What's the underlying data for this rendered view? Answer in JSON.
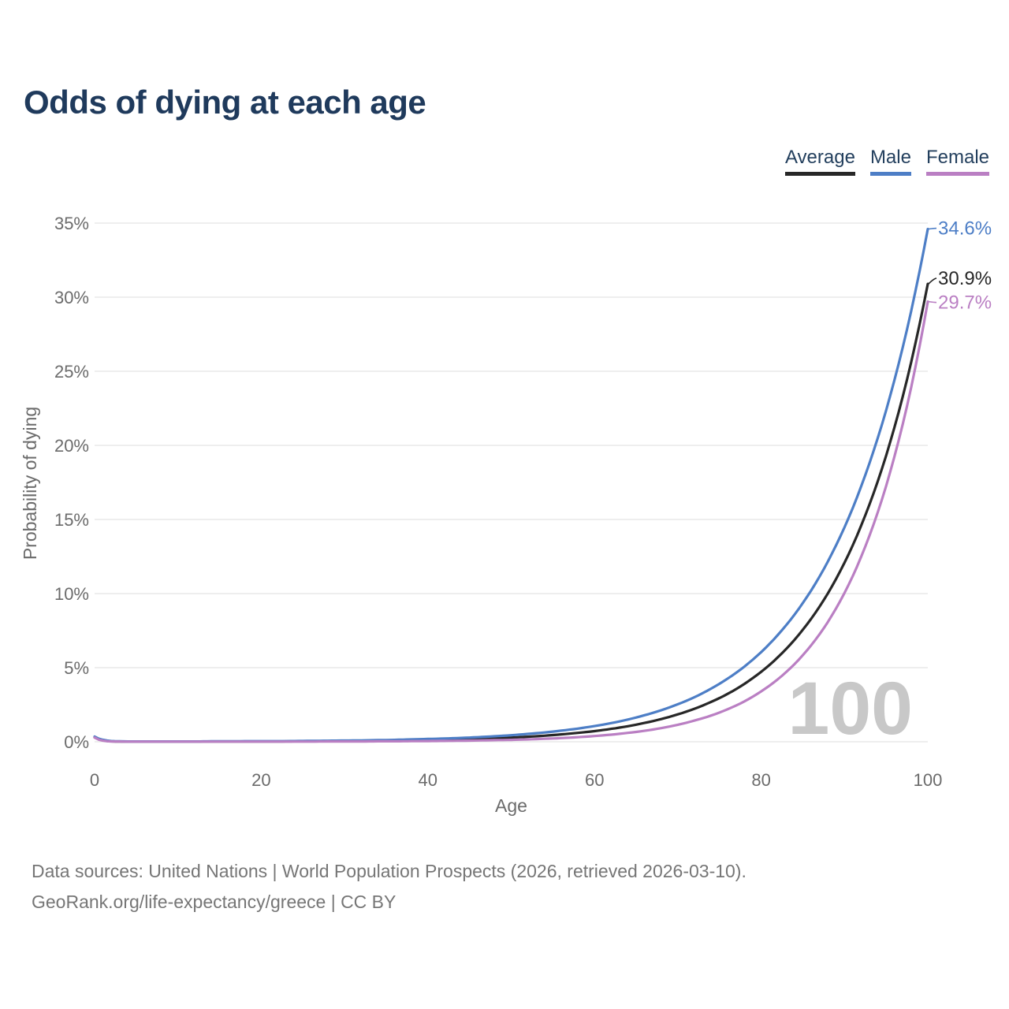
{
  "legend": {
    "items": [
      {
        "label": "Average",
        "color": "#272727"
      },
      {
        "label": "Male",
        "color": "#4d7ec6"
      },
      {
        "label": "Female",
        "color": "#ba7fc3"
      }
    ]
  },
  "chart_data": {
    "type": "line",
    "title": "Odds of dying at each age",
    "xlabel": "Age",
    "ylabel": "Probability of dying",
    "xlim": [
      0,
      100
    ],
    "ylim_pct": [
      0,
      35
    ],
    "grid": "horizontal",
    "legend_position": "top-right",
    "watermark": "100",
    "x_ticks": [
      0,
      20,
      40,
      60,
      80,
      100
    ],
    "y_ticks": [
      "0%",
      "5%",
      "10%",
      "15%",
      "20%",
      "25%",
      "30%",
      "35%"
    ],
    "ages": [
      0,
      2,
      4,
      6,
      8,
      10,
      12,
      14,
      16,
      18,
      20,
      22,
      24,
      26,
      28,
      30,
      32,
      34,
      36,
      38,
      40,
      42,
      44,
      46,
      48,
      50,
      52,
      54,
      56,
      58,
      60,
      62,
      64,
      66,
      68,
      70,
      72,
      74,
      76,
      78,
      80,
      82,
      84,
      86,
      88,
      90,
      92,
      94,
      96,
      98,
      100
    ],
    "series": [
      {
        "name": "Average",
        "color": "#272727",
        "end_label": "30.9%",
        "values_pct": [
          0.31,
          0.03,
          0.01,
          0.01,
          0.01,
          0.01,
          0.01,
          0.02,
          0.02,
          0.02,
          0.02,
          0.02,
          0.03,
          0.03,
          0.04,
          0.05,
          0.05,
          0.06,
          0.08,
          0.09,
          0.11,
          0.13,
          0.16,
          0.19,
          0.23,
          0.28,
          0.34,
          0.41,
          0.5,
          0.6,
          0.72,
          0.87,
          1.05,
          1.27,
          1.53,
          1.85,
          2.23,
          2.69,
          3.24,
          3.91,
          4.72,
          5.7,
          6.88,
          8.3,
          10.01,
          12.08,
          14.58,
          17.59,
          21.22,
          25.61,
          30.9
        ]
      },
      {
        "name": "Male",
        "color": "#4d7ec6",
        "end_label": "34.6%",
        "values_pct": [
          0.35,
          0.05,
          0.02,
          0.02,
          0.02,
          0.02,
          0.02,
          0.03,
          0.03,
          0.04,
          0.04,
          0.04,
          0.05,
          0.06,
          0.07,
          0.08,
          0.09,
          0.11,
          0.13,
          0.16,
          0.19,
          0.22,
          0.26,
          0.31,
          0.37,
          0.44,
          0.53,
          0.63,
          0.75,
          0.89,
          1.06,
          1.26,
          1.5,
          1.79,
          2.13,
          2.53,
          3.01,
          3.59,
          4.27,
          5.08,
          6.05,
          7.21,
          8.58,
          10.21,
          12.16,
          14.47,
          17.23,
          20.51,
          24.41,
          29.06,
          34.6
        ]
      },
      {
        "name": "Female",
        "color": "#ba7fc3",
        "end_label": "29.7%",
        "values_pct": [
          0.28,
          0.02,
          0.01,
          0.01,
          0.01,
          0.01,
          0.01,
          0.01,
          0.01,
          0.01,
          0.01,
          0.01,
          0.01,
          0.01,
          0.02,
          0.02,
          0.02,
          0.03,
          0.03,
          0.04,
          0.05,
          0.06,
          0.07,
          0.09,
          0.11,
          0.13,
          0.16,
          0.2,
          0.25,
          0.31,
          0.39,
          0.48,
          0.6,
          0.74,
          0.92,
          1.15,
          1.43,
          1.77,
          2.2,
          2.73,
          3.4,
          4.22,
          5.24,
          6.51,
          8.08,
          10.04,
          12.48,
          15.5,
          19.25,
          23.91,
          29.7
        ]
      }
    ]
  },
  "footer": {
    "line1": "Data sources: United Nations | World Population Prospects (2026, retrieved 2026-03-10).",
    "line2": "GeoRank.org/life-expectancy/greece | CC BY"
  }
}
